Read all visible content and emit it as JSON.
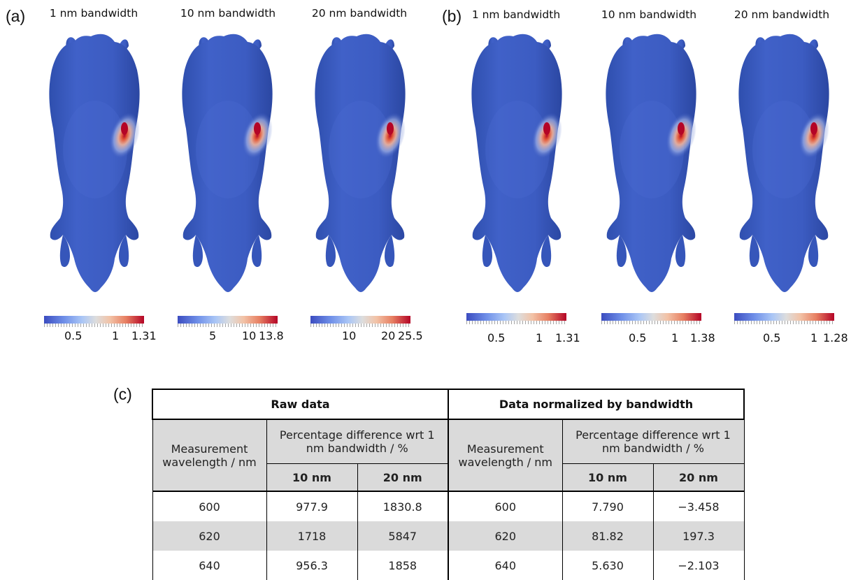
{
  "panels": {
    "a": {
      "label": "(a)",
      "images": [
        {
          "title": "1 nm bandwidth",
          "colorbar_ticks": [
            "0.5",
            "1",
            "1.31"
          ],
          "colorbar_max": 1.31
        },
        {
          "title": "10 nm bandwidth",
          "colorbar_ticks": [
            "5",
            "10",
            "13.8"
          ],
          "colorbar_max": 13.8
        },
        {
          "title": "20 nm bandwidth",
          "colorbar_ticks": [
            "10",
            "20",
            "25.5"
          ],
          "colorbar_max": 25.5
        }
      ]
    },
    "b": {
      "label": "(b)",
      "images": [
        {
          "title": "1 nm bandwidth",
          "colorbar_ticks": [
            "0.5",
            "1",
            "1.31"
          ],
          "colorbar_max": 1.31
        },
        {
          "title": "10 nm bandwidth",
          "colorbar_ticks": [
            "0.5",
            "1",
            "1.38"
          ],
          "colorbar_max": 1.38
        },
        {
          "title": "20 nm bandwidth",
          "colorbar_ticks": [
            "0.5",
            "1",
            "1.28"
          ],
          "colorbar_max": 1.28
        }
      ]
    },
    "c": {
      "label": "(c)",
      "table": {
        "raw_header": "Raw data",
        "norm_header": "Data normalized by bandwidth",
        "wavelength_header": "Measurement wavelength / nm",
        "pct_header": "Percentage difference wrt 1 nm bandwidth / %",
        "col_10": "10 nm",
        "col_20": "20 nm",
        "rows": [
          {
            "wl": "600",
            "raw10": "977.9",
            "raw20": "1830.8",
            "wl2": "600",
            "n10": "7.790",
            "n20": "−3.458"
          },
          {
            "wl": "620",
            "raw10": "1718",
            "raw20": "5847",
            "wl2": "620",
            "n10": "81.82",
            "n20": "197.3"
          },
          {
            "wl": "640",
            "raw10": "956.3",
            "raw20": "1858",
            "wl2": "640",
            "n10": "5.630",
            "n20": "−2.103"
          }
        ]
      }
    }
  },
  "colors": {
    "surface": "#3f5fc4",
    "hotspot": "#b40426",
    "table_grey": "#dadada"
  }
}
